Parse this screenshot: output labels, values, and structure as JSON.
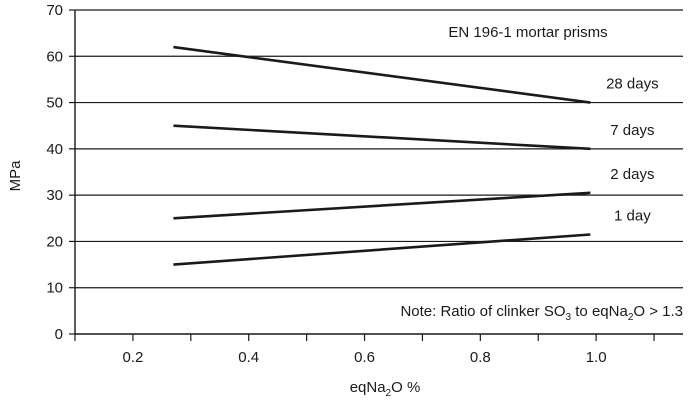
{
  "chart_data": {
    "type": "line",
    "ylabel": "MPa",
    "xlabel_parts": [
      "eqNa",
      "2",
      "O %"
    ],
    "xlim": [
      0.1,
      1.15
    ],
    "ylim": [
      0,
      70
    ],
    "x_ticks": [
      0.2,
      0.4,
      0.6,
      0.8,
      1.0
    ],
    "x_tick_labels": [
      "0.2",
      "0.4",
      "0.6",
      "0.8",
      "1.0"
    ],
    "y_ticks": [
      0,
      10,
      20,
      30,
      40,
      50,
      60,
      70
    ],
    "y_tick_labels": [
      "0",
      "10",
      "20",
      "30",
      "40",
      "50",
      "60",
      "70"
    ],
    "grid": "horizontal",
    "series": [
      {
        "name": "28 days",
        "x": [
          0.27,
          0.99
        ],
        "y": [
          62,
          50
        ]
      },
      {
        "name": "7 days",
        "x": [
          0.27,
          0.99
        ],
        "y": [
          45,
          40
        ]
      },
      {
        "name": "2 days",
        "x": [
          0.27,
          0.99
        ],
        "y": [
          25,
          30.5
        ]
      },
      {
        "name": "1 day",
        "x": [
          0.27,
          0.99
        ],
        "y": [
          15,
          21.5
        ]
      }
    ],
    "annotations": {
      "title": "EN 196-1 mortar prisms",
      "note_parts": [
        "Note: Ratio of clinker SO",
        "3",
        " to eqNa",
        "2",
        "O > 1.3"
      ]
    }
  }
}
